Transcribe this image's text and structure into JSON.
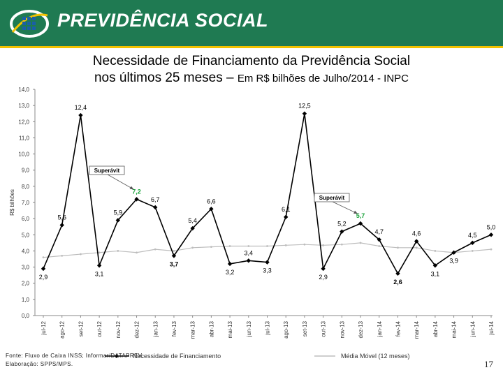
{
  "header": {
    "brand": "PREVIDÊNCIA SOCIAL",
    "color": "#1f7a52",
    "accent": "#f2c200"
  },
  "title": {
    "line1": "Necessidade de Financiamento da Previdência Social",
    "line2": "nos últimos 25 meses –",
    "subtitle": "Em R$ bilhões de Julho/2014 - INPC"
  },
  "chart_data": {
    "type": "line",
    "ylabel": "R$ bilhões",
    "ylim": [
      0,
      14
    ],
    "yticks": [
      "0,0",
      "1,0",
      "2,0",
      "3,0",
      "4,0",
      "5,0",
      "6,0",
      "7,0",
      "8,0",
      "9,0",
      "10,0",
      "11,0",
      "12,0",
      "13,0",
      "14,0"
    ],
    "categories": [
      "jul-12",
      "ago-12",
      "set-12",
      "out-12",
      "nov-12",
      "dez-12",
      "jan-13",
      "fev-13",
      "mar-13",
      "abr-13",
      "mai-13",
      "jun-13",
      "jul-13",
      "ago-13",
      "set-13",
      "out-13",
      "nov-13",
      "dez-13",
      "jan-14",
      "fev-14",
      "mar-14",
      "abr-14",
      "mai-14",
      "jun-14",
      "jul-14"
    ],
    "series": [
      {
        "name": "Necessidade de Financiamento",
        "color": "#000000",
        "values": [
          2.9,
          5.6,
          12.4,
          3.1,
          5.9,
          7.2,
          6.7,
          3.7,
          5.4,
          6.6,
          3.2,
          3.4,
          3.3,
          6.1,
          12.5,
          2.9,
          5.2,
          5.7,
          4.7,
          2.6,
          4.6,
          3.1,
          3.9,
          4.5,
          5.0
        ],
        "labels": [
          "2,9",
          "5,6",
          "12,4",
          "3,1",
          "5,9",
          "7,2",
          "6,7",
          "3,7",
          "5,4",
          "6,6",
          "3,2",
          "3,4",
          "3,3",
          "6,1",
          "12,5",
          "2,9",
          "5,2",
          "5,7",
          "4,7",
          "2,6",
          "4,6",
          "3,1",
          "3,9",
          "4,5",
          "5,0"
        ],
        "label_pos": [
          "below",
          "above",
          "above",
          "below",
          "above",
          "above",
          "above",
          "below",
          "above",
          "above",
          "below",
          "above",
          "below",
          "above",
          "above",
          "below",
          "above",
          "above",
          "above",
          "below",
          "above",
          "below",
          "below",
          "above",
          "above"
        ],
        "highlight": [
          5,
          17
        ],
        "highlight_color": "#1aa33a"
      },
      {
        "name": "Média Móvel (12 meses)",
        "color": "#bdbdbd",
        "values": [
          3.6,
          3.7,
          3.8,
          3.9,
          4.0,
          3.9,
          4.1,
          4.0,
          4.2,
          4.25,
          4.3,
          4.3,
          4.3,
          4.35,
          4.4,
          4.35,
          4.4,
          4.5,
          4.3,
          4.2,
          4.2,
          4.0,
          3.9,
          4.0,
          4.1
        ]
      }
    ],
    "annotations": [
      {
        "text": "Superávit",
        "target_index": 5
      },
      {
        "text": "Superávit",
        "target_index": 17
      }
    ]
  },
  "footer": {
    "source": "Fonte: Fluxo de Caixa INSS; Informar/DATAPREV.",
    "elaboration": "Elaboração: SPPS/MPS."
  },
  "page_number": "17"
}
